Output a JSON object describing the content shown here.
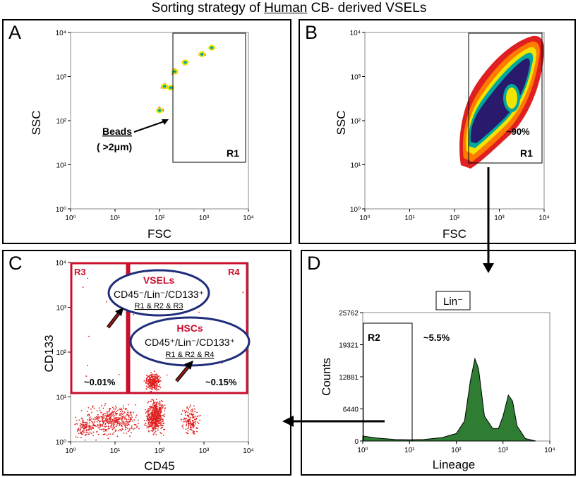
{
  "figure": {
    "title_pre": "Sorting  strategy of ",
    "title_underlined": "Human",
    "title_post": " CB- derived VSELs"
  },
  "panels": {
    "a": {
      "letter": "A",
      "xlabel": "FSC",
      "ylabel": "SSC",
      "gate_label": "R1",
      "beads_label": "Beads",
      "beads_size": "( >2μm)"
    },
    "b": {
      "letter": "B",
      "xlabel": "FSC",
      "ylabel": "SSC",
      "gate_label": "R1",
      "gate_percent": "~90%"
    },
    "c": {
      "letter": "C",
      "xlabel": "CD45",
      "ylabel": "CD133",
      "gate_r3": "R3",
      "gate_r4": "R4",
      "r3_percent": "~0.01%",
      "r4_percent": "~0.15%",
      "vsels_title": "VSELs",
      "vsels_phenotype": "CD45⁻/Lin⁻/CD133⁺",
      "vsels_gates": "R1 & R2 & R3",
      "hscs_title": "HSCs",
      "hscs_phenotype": "CD45⁺/Lin⁻/CD133⁺",
      "hscs_gates": "R1 & R2 & R4"
    },
    "d": {
      "letter": "D",
      "xlabel": "Lineage",
      "ylabel": "Counts",
      "gate_label": "R2",
      "gate_percent": "~5.5%",
      "lin_box": "Lin⁻",
      "y_ticks": [
        "25762",
        "19321",
        "12881",
        "6440",
        "0"
      ]
    }
  },
  "log_ticks": [
    "10⁰",
    "10¹",
    "10²",
    "10³",
    "10⁴"
  ],
  "colors": {
    "panel_border": "#000000",
    "gate_red": "#c8102e",
    "ellipse_blue": "#1f2d7a",
    "histogram_green": "#2e7d32",
    "density_core": "#2a1a6e",
    "density_red": "#e02020"
  },
  "chart_data": [
    {
      "type": "scatter",
      "panel": "A",
      "xlabel": "FSC",
      "ylabel": "SSC",
      "xscale": "log",
      "yscale": "log",
      "xlim": [
        1,
        10000
      ],
      "ylim": [
        1,
        10000
      ],
      "series": [
        {
          "name": "Beads",
          "x": [
            100,
            130,
            180,
            220,
            380,
            900,
            1500
          ],
          "y": [
            170,
            600,
            560,
            1300,
            2100,
            3200,
            4500
          ]
        }
      ],
      "gates": [
        {
          "name": "R1",
          "x_range": [
            170,
            8000
          ],
          "y_range": [
            12,
            10000
          ]
        }
      ]
    },
    {
      "type": "scatter",
      "panel": "B",
      "xlabel": "FSC",
      "ylabel": "SSC",
      "xscale": "log",
      "yscale": "log",
      "xlim": [
        1,
        10000
      ],
      "ylim": [
        1,
        10000
      ],
      "gates": [
        {
          "name": "R1",
          "x_range": [
            170,
            8000
          ],
          "y_range": [
            12,
            10000
          ],
          "percent": "~90%"
        }
      ]
    },
    {
      "type": "scatter",
      "panel": "C",
      "xlabel": "CD45",
      "ylabel": "CD133",
      "xscale": "log",
      "yscale": "log",
      "xlim": [
        1,
        10000
      ],
      "ylim": [
        1,
        10000
      ],
      "gates": [
        {
          "name": "R3",
          "x_range": [
            1,
            18
          ],
          "y_range": [
            12,
            10000
          ],
          "percent": "~0.01%"
        },
        {
          "name": "R4",
          "x_range": [
            20,
            8000
          ],
          "y_range": [
            12,
            10000
          ],
          "percent": "~0.15%"
        }
      ]
    },
    {
      "type": "area",
      "panel": "D",
      "xlabel": "Lineage",
      "ylabel": "Counts",
      "xscale": "log",
      "xlim": [
        1,
        10000
      ],
      "ylim": [
        0,
        25762
      ],
      "y_ticks": [
        0,
        6440,
        12881,
        19321,
        25762
      ],
      "x": [
        1,
        2,
        5,
        10,
        20,
        50,
        100,
        150,
        200,
        250,
        300,
        400,
        600,
        800,
        1000,
        1300,
        1600,
        2000,
        3000,
        5000
      ],
      "values": [
        1000,
        600,
        300,
        250,
        300,
        700,
        1500,
        4000,
        12000,
        16500,
        14500,
        5000,
        2500,
        2500,
        5000,
        9200,
        8000,
        3000,
        500,
        0
      ],
      "gates": [
        {
          "name": "R2",
          "x_range": [
            1,
            10
          ],
          "percent": "~5.5%"
        }
      ]
    }
  ]
}
